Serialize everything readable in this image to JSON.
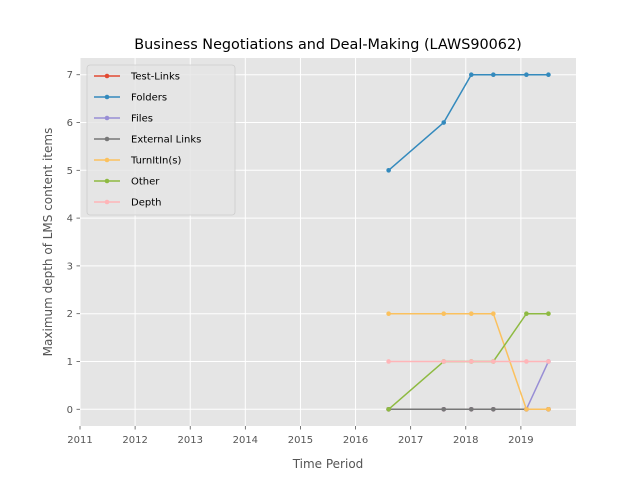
{
  "chart_data": {
    "type": "line",
    "title": "Business Negotiations and Deal-Making (LAWS90062)",
    "xlabel": "Time Period",
    "ylabel": "Maximum depth of LMS content items",
    "xlim": [
      2011,
      2020
    ],
    "ylim": [
      -0.35,
      7.35
    ],
    "xticks": [
      "2011",
      "2012",
      "2013",
      "2014",
      "2015",
      "2016",
      "2017",
      "2018",
      "2019"
    ],
    "yticks": [
      "0",
      "1",
      "2",
      "3",
      "4",
      "5",
      "6",
      "7"
    ],
    "x": [
      2016.6,
      2017.6,
      2018.1,
      2018.5,
      2019.1,
      2019.5
    ],
    "grid": true,
    "legend_position": "top-left",
    "series": [
      {
        "name": "Test-Links",
        "color": "#e24a33",
        "values": [
          0,
          0,
          0,
          0,
          0,
          0
        ]
      },
      {
        "name": "Folders",
        "color": "#348abd",
        "values": [
          5,
          6,
          7,
          7,
          7,
          7
        ]
      },
      {
        "name": "Files",
        "color": "#988ed5",
        "values": [
          0,
          0,
          0,
          0,
          0,
          1
        ]
      },
      {
        "name": "External Links",
        "color": "#777777",
        "values": [
          0,
          0,
          0,
          0,
          0,
          0
        ]
      },
      {
        "name": "TurnItIn(s)",
        "color": "#fbc15e",
        "values": [
          2,
          2,
          2,
          2,
          0,
          0
        ]
      },
      {
        "name": "Other",
        "color": "#8eba42",
        "values": [
          0,
          1,
          1,
          1,
          2,
          2
        ]
      },
      {
        "name": "Depth",
        "color": "#ffb5b8",
        "values": [
          1,
          1,
          1,
          1,
          1,
          1
        ]
      }
    ]
  }
}
